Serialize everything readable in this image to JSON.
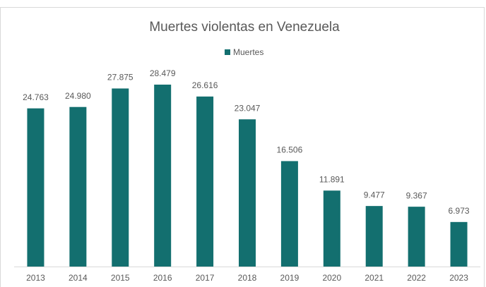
{
  "chart_data": {
    "type": "bar",
    "title": "Muertes violentas en Venezuela",
    "categories": [
      "2013",
      "2014",
      "2015",
      "2016",
      "2017",
      "2018",
      "2019",
      "2020",
      "2021",
      "2022",
      "2023"
    ],
    "series": [
      {
        "name": "Muertes",
        "color": "#136f6f",
        "values": [
          24763,
          24980,
          27875,
          28479,
          26616,
          23047,
          16506,
          11891,
          9477,
          9367,
          6973
        ],
        "value_labels": [
          "24.763",
          "24.980",
          "27.875",
          "28.479",
          "26.616",
          "23.047",
          "16.506",
          "11.891",
          "9.477",
          "9.367",
          "6.973"
        ]
      }
    ],
    "legend": "top"
  }
}
